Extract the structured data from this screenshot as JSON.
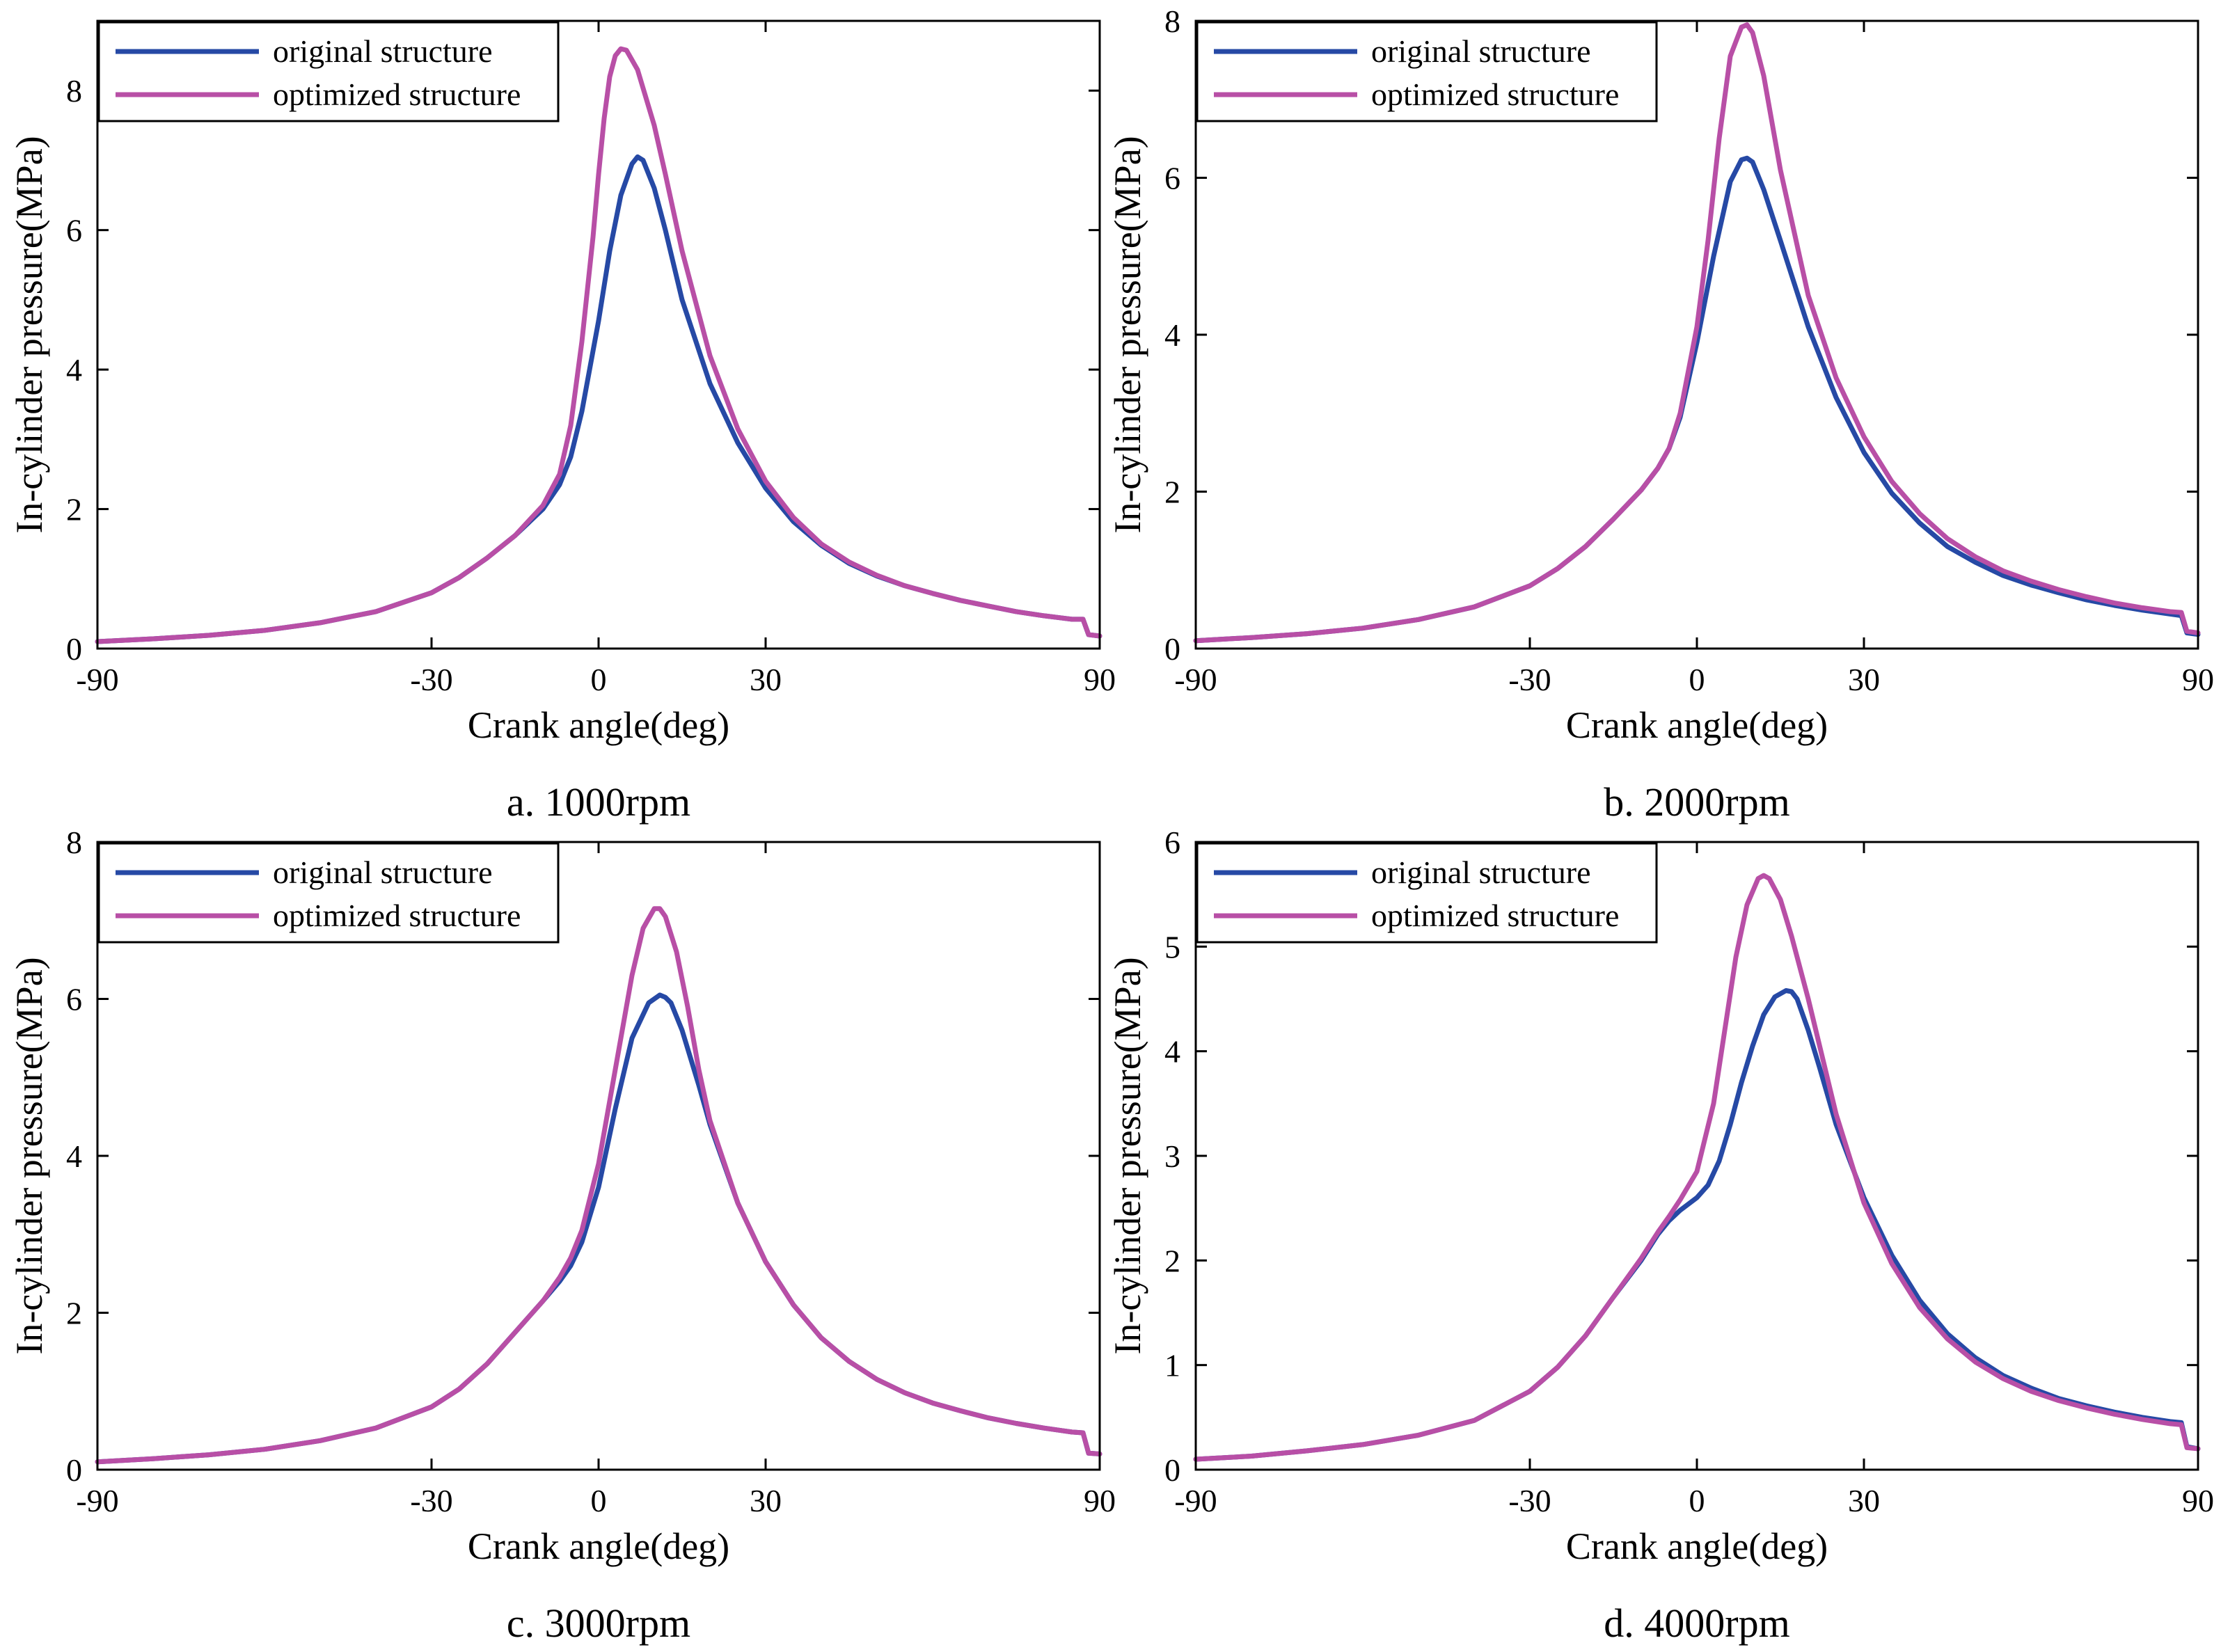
{
  "colors": {
    "original": "#2649a5",
    "optimized": "#b84fa6",
    "axis": "#000000",
    "background": "#ffffff"
  },
  "chart_data": [
    {
      "type": "line",
      "caption": "a. 1000rpm",
      "xlabel": "Crank angle(deg)",
      "ylabel": "In-cylinder pressure(MPa)",
      "xlim": [
        -90,
        90
      ],
      "ylim": [
        0,
        9
      ],
      "xticks": [
        -90,
        -30,
        0,
        30,
        90
      ],
      "xtick_labels": [
        "-90",
        "-30",
        "0",
        "30",
        "90"
      ],
      "yticks": [
        0,
        2,
        4,
        6,
        8
      ],
      "ytick_labels": [
        "0",
        "2",
        "4",
        "6",
        "8"
      ],
      "grid": false,
      "legend_position": "top-left",
      "series": [
        {
          "name": "original structure",
          "color_key": "original",
          "x": [
            -90,
            -80,
            -70,
            -60,
            -50,
            -40,
            -30,
            -25,
            -20,
            -15,
            -10,
            -7,
            -5,
            -3,
            0,
            2,
            4,
            6,
            7,
            8,
            10,
            12,
            15,
            20,
            25,
            30,
            35,
            40,
            45,
            50,
            55,
            60,
            65,
            70,
            75,
            80,
            85,
            87,
            88,
            90
          ],
          "y": [
            0.1,
            0.14,
            0.19,
            0.26,
            0.37,
            0.53,
            0.8,
            1.02,
            1.3,
            1.62,
            2.0,
            2.35,
            2.75,
            3.4,
            4.7,
            5.7,
            6.5,
            6.95,
            7.05,
            7.0,
            6.6,
            6.0,
            5.0,
            3.8,
            2.95,
            2.3,
            1.82,
            1.48,
            1.22,
            1.04,
            0.9,
            0.79,
            0.69,
            0.61,
            0.53,
            0.47,
            0.42,
            0.42,
            0.2,
            0.18
          ]
        },
        {
          "name": "optimized structure",
          "color_key": "optimized",
          "x": [
            -90,
            -80,
            -70,
            -60,
            -50,
            -40,
            -30,
            -25,
            -20,
            -15,
            -10,
            -7,
            -5,
            -3,
            -1,
            0,
            1,
            2,
            3,
            4,
            5,
            7,
            10,
            12,
            15,
            20,
            25,
            30,
            35,
            40,
            45,
            50,
            55,
            60,
            65,
            70,
            75,
            80,
            85,
            87,
            88,
            90
          ],
          "y": [
            0.1,
            0.14,
            0.19,
            0.26,
            0.37,
            0.53,
            0.8,
            1.02,
            1.3,
            1.62,
            2.05,
            2.5,
            3.2,
            4.4,
            5.9,
            6.8,
            7.6,
            8.2,
            8.5,
            8.6,
            8.58,
            8.3,
            7.5,
            6.8,
            5.7,
            4.2,
            3.15,
            2.4,
            1.88,
            1.5,
            1.24,
            1.05,
            0.9,
            0.79,
            0.69,
            0.61,
            0.53,
            0.47,
            0.42,
            0.42,
            0.2,
            0.18
          ]
        }
      ]
    },
    {
      "type": "line",
      "caption": "b. 2000rpm",
      "xlabel": "Crank angle(deg)",
      "ylabel": "In-cylinder pressure(MPa)",
      "xlim": [
        -90,
        90
      ],
      "ylim": [
        0,
        8
      ],
      "xticks": [
        -90,
        -30,
        0,
        30,
        90
      ],
      "xtick_labels": [
        "-90",
        "-30",
        "0",
        "30",
        "90"
      ],
      "yticks": [
        0,
        2,
        4,
        6,
        8
      ],
      "ytick_labels": [
        "0",
        "2",
        "4",
        "6",
        "8"
      ],
      "grid": false,
      "legend_position": "top-left",
      "series": [
        {
          "name": "original structure",
          "color_key": "original",
          "x": [
            -90,
            -80,
            -70,
            -60,
            -50,
            -40,
            -30,
            -25,
            -20,
            -15,
            -10,
            -7,
            -5,
            -3,
            0,
            3,
            6,
            8,
            9,
            10,
            12,
            15,
            20,
            25,
            30,
            35,
            40,
            45,
            50,
            55,
            60,
            65,
            70,
            75,
            80,
            85,
            87,
            88,
            90
          ],
          "y": [
            0.1,
            0.14,
            0.19,
            0.26,
            0.37,
            0.53,
            0.8,
            1.02,
            1.3,
            1.65,
            2.02,
            2.3,
            2.55,
            2.95,
            3.9,
            5.0,
            5.95,
            6.23,
            6.25,
            6.2,
            5.85,
            5.2,
            4.1,
            3.2,
            2.5,
            1.98,
            1.6,
            1.3,
            1.1,
            0.93,
            0.81,
            0.71,
            0.62,
            0.55,
            0.49,
            0.44,
            0.42,
            0.2,
            0.18
          ]
        },
        {
          "name": "optimized structure",
          "color_key": "optimized",
          "x": [
            -90,
            -80,
            -70,
            -60,
            -50,
            -40,
            -30,
            -25,
            -20,
            -15,
            -10,
            -7,
            -5,
            -3,
            0,
            2,
            4,
            6,
            8,
            9,
            10,
            12,
            15,
            20,
            25,
            30,
            35,
            40,
            45,
            50,
            55,
            60,
            65,
            70,
            75,
            80,
            85,
            87,
            88,
            90
          ],
          "y": [
            0.1,
            0.14,
            0.19,
            0.26,
            0.37,
            0.53,
            0.8,
            1.02,
            1.3,
            1.65,
            2.02,
            2.3,
            2.55,
            3.0,
            4.1,
            5.2,
            6.5,
            7.55,
            7.92,
            7.95,
            7.85,
            7.3,
            6.1,
            4.5,
            3.45,
            2.7,
            2.13,
            1.72,
            1.4,
            1.17,
            0.99,
            0.86,
            0.75,
            0.66,
            0.58,
            0.52,
            0.47,
            0.46,
            0.22,
            0.2
          ]
        }
      ]
    },
    {
      "type": "line",
      "caption": "c. 3000rpm",
      "xlabel": "Crank angle(deg)",
      "ylabel": "In-cylinder pressure(MPa)",
      "xlim": [
        -90,
        90
      ],
      "ylim": [
        0,
        8
      ],
      "xticks": [
        -90,
        -30,
        0,
        30,
        90
      ],
      "xtick_labels": [
        "-90",
        "-30",
        "0",
        "30",
        "90"
      ],
      "yticks": [
        0,
        2,
        4,
        6,
        8
      ],
      "ytick_labels": [
        "0",
        "2",
        "4",
        "6",
        "8"
      ],
      "grid": false,
      "legend_position": "top-left",
      "series": [
        {
          "name": "original structure",
          "color_key": "original",
          "x": [
            -90,
            -80,
            -70,
            -60,
            -50,
            -40,
            -30,
            -25,
            -20,
            -15,
            -10,
            -7,
            -5,
            -3,
            0,
            3,
            6,
            9,
            11,
            12,
            13,
            15,
            18,
            20,
            25,
            30,
            35,
            40,
            45,
            50,
            55,
            60,
            65,
            70,
            75,
            80,
            85,
            87,
            88,
            90
          ],
          "y": [
            0.1,
            0.14,
            0.19,
            0.26,
            0.37,
            0.53,
            0.8,
            1.03,
            1.35,
            1.75,
            2.15,
            2.4,
            2.6,
            2.9,
            3.6,
            4.6,
            5.5,
            5.95,
            6.05,
            6.02,
            5.95,
            5.6,
            4.9,
            4.4,
            3.4,
            2.65,
            2.1,
            1.68,
            1.38,
            1.15,
            0.98,
            0.85,
            0.75,
            0.66,
            0.59,
            0.53,
            0.48,
            0.47,
            0.21,
            0.2
          ]
        },
        {
          "name": "optimized structure",
          "color_key": "optimized",
          "x": [
            -90,
            -80,
            -70,
            -60,
            -50,
            -40,
            -30,
            -25,
            -20,
            -15,
            -10,
            -7,
            -5,
            -3,
            0,
            3,
            6,
            8,
            10,
            11,
            12,
            14,
            16,
            18,
            20,
            25,
            30,
            35,
            40,
            45,
            50,
            55,
            60,
            65,
            70,
            75,
            80,
            85,
            87,
            88,
            90
          ],
          "y": [
            0.1,
            0.14,
            0.19,
            0.26,
            0.37,
            0.53,
            0.8,
            1.03,
            1.35,
            1.75,
            2.15,
            2.45,
            2.7,
            3.05,
            3.9,
            5.1,
            6.3,
            6.9,
            7.15,
            7.15,
            7.05,
            6.6,
            5.9,
            5.1,
            4.45,
            3.4,
            2.65,
            2.1,
            1.68,
            1.38,
            1.15,
            0.98,
            0.85,
            0.75,
            0.66,
            0.59,
            0.53,
            0.48,
            0.47,
            0.21,
            0.2
          ]
        }
      ]
    },
    {
      "type": "line",
      "caption": "d. 4000rpm",
      "xlabel": "Crank angle(deg)",
      "ylabel": "In-cylinder pressure(MPa)",
      "xlim": [
        -90,
        90
      ],
      "ylim": [
        0,
        6
      ],
      "xticks": [
        -90,
        -30,
        0,
        30,
        90
      ],
      "xtick_labels": [
        "-90",
        "-30",
        "0",
        "30",
        "90"
      ],
      "yticks": [
        0,
        1,
        2,
        3,
        4,
        5,
        6
      ],
      "ytick_labels": [
        "0",
        "1",
        "2",
        "3",
        "4",
        "5",
        "6"
      ],
      "grid": false,
      "legend_position": "top-left",
      "series": [
        {
          "name": "original structure",
          "color_key": "original",
          "x": [
            -90,
            -80,
            -70,
            -60,
            -50,
            -40,
            -30,
            -25,
            -20,
            -15,
            -10,
            -7,
            -5,
            -3,
            0,
            2,
            4,
            6,
            8,
            10,
            12,
            14,
            16,
            17,
            18,
            20,
            22,
            25,
            30,
            35,
            40,
            45,
            50,
            55,
            60,
            65,
            70,
            75,
            80,
            85,
            87,
            88,
            90
          ],
          "y": [
            0.1,
            0.13,
            0.18,
            0.24,
            0.33,
            0.47,
            0.75,
            0.98,
            1.28,
            1.65,
            2.0,
            2.25,
            2.38,
            2.48,
            2.6,
            2.72,
            2.95,
            3.3,
            3.7,
            4.05,
            4.35,
            4.52,
            4.58,
            4.57,
            4.5,
            4.2,
            3.85,
            3.3,
            2.6,
            2.05,
            1.62,
            1.3,
            1.07,
            0.9,
            0.78,
            0.68,
            0.61,
            0.55,
            0.5,
            0.46,
            0.45,
            0.22,
            0.2
          ]
        },
        {
          "name": "optimized structure",
          "color_key": "optimized",
          "x": [
            -90,
            -80,
            -70,
            -60,
            -50,
            -40,
            -30,
            -25,
            -20,
            -15,
            -10,
            -7,
            -5,
            -3,
            0,
            3,
            5,
            7,
            9,
            11,
            12,
            13,
            15,
            17,
            20,
            25,
            30,
            35,
            40,
            45,
            50,
            55,
            60,
            65,
            70,
            75,
            80,
            85,
            87,
            88,
            90
          ],
          "y": [
            0.1,
            0.13,
            0.18,
            0.24,
            0.33,
            0.47,
            0.75,
            0.98,
            1.28,
            1.65,
            2.02,
            2.27,
            2.42,
            2.58,
            2.85,
            3.5,
            4.2,
            4.9,
            5.4,
            5.65,
            5.68,
            5.65,
            5.45,
            5.1,
            4.5,
            3.4,
            2.55,
            1.97,
            1.55,
            1.25,
            1.03,
            0.87,
            0.75,
            0.66,
            0.59,
            0.53,
            0.48,
            0.44,
            0.43,
            0.21,
            0.2
          ]
        }
      ]
    }
  ]
}
